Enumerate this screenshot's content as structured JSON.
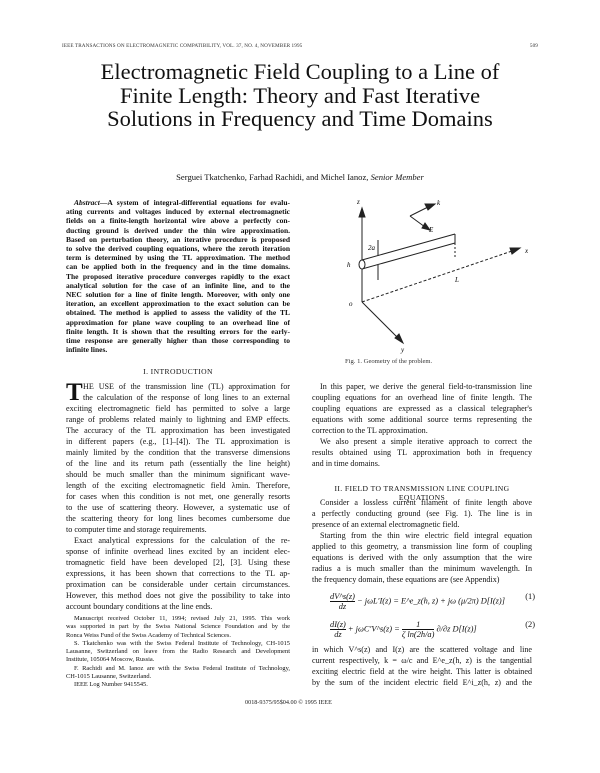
{
  "running_head": {
    "journal": "IEEE TRANSACTIONS ON ELECTROMAGNETIC COMPATIBILITY, VOL. 37, NO. 4, NOVEMBER 1995",
    "page": "509"
  },
  "title_lines": [
    "Electromagnetic Field Coupling to a Line of",
    "Finite Length: Theory and Fast Iterative",
    "Solutions in Frequency and Time Domains"
  ],
  "authors": "Serguei Tkatchenko, Farhad Rachidi, and Michel Ianoz,",
  "authors_role": "Senior Member",
  "abstract_label": "Abstract",
  "abstract_lines": [
    "—A system of integral-differential equations for evalu-",
    "ating currents and voltages induced by external electromagnetic",
    "fields on a finite-length horizontal wire above a perfectly con-",
    "ducting ground is derived under the thin wire approximation.",
    "Based on perturbation theory, an iterative procedure is proposed",
    "to solve the derived coupling equations, where the zeroth iteration",
    "term is determined by using the TL approximation. The method",
    "can be applied both in the frequency and in the time domains.",
    "The proposed iterative procedure converges rapidly to the exact",
    "analytical solution for the case of an infinite line, and to the",
    "NEC solution for a line of finite length. Moreover, with only one",
    "iteration, an excellent approximation to the exact solution can be",
    "obtained. The method is applied to assess the validity of the TL",
    "approximation for plane wave coupling to an overhead line of",
    "finite length. It is shown that the resulting errors for the early-",
    "time response are generally higher than those corresponding to",
    "infinite lines."
  ],
  "section1_heading": "I. INTRODUCTION",
  "intro_dropcap": "T",
  "intro_lines": [
    "HE USE of the transmission line (TL) approximation for",
    "the calculation of the response of long lines to an external",
    "exciting electromagnetic field has permitted to solve a large",
    "range of problems related mainly to lightning and EMP effects.",
    "The accuracy of the TL approximation has been investigated",
    "in different papers (e.g., [1]–[4]). The TL approximation is",
    "mainly limited by the condition that the transverse dimensions",
    "of the line and its return path (essentially the line height)",
    "should be much smaller than the minimum significant wave-",
    "length of the exciting electromagnetic field λmin. Therefore,",
    "for cases when this condition is not met, one generally resorts",
    "to the use of scattering theory. However, a systematic use of",
    "the scattering theory for long lines becomes cumbersome due",
    "to computer time and storage requirements.",
    "Exact analytical expressions for the calculation of the re-",
    "sponse of infinite overhead lines excited by an incident elec-",
    "tromagnetic field have been developed [2], [3]. Using these",
    "expressions, it has been shown that corrections to the TL ap-",
    "proximation can be considerable under certain circumstances.",
    "However, this method does not give the possibility to take into",
    "account boundary conditions at the line ends."
  ],
  "footnote_lines": [
    "Manuscript received October 11, 1994; revised July 21, 1995. This work",
    "was supported in part by the Swiss National Science Foundation and by the",
    "Ronca Weiss Fund of the Swiss Academy of Technical Sciences.",
    "S. Tkatchenko was with the Swiss Federal Institute of Technology, CH-1015",
    "Lausanne, Switzerland on leave from the Radio Research and Development",
    "Institute, 105064 Moscow, Russia.",
    "F. Rachidi and M. Ianoz are with the Swiss Federal Institute of Technology,",
    "CH-1015 Lausanne, Switzerland.",
    "IEEE Log Number 9415545."
  ],
  "copyright": "0018-9375/95$04.00 © 1995 IEEE",
  "figure": {
    "caption": "Fig. 1.   Geometry of the problem.",
    "labels": {
      "z": "z",
      "y": "y",
      "x": "x",
      "o": "o",
      "h": "h",
      "L": "L",
      "two_a": "2a",
      "e": "E",
      "k": "k"
    }
  },
  "right_para1_lines": [
    "In this paper, we derive the general field-to-transmission line",
    "coupling equations for an overhead line of finite length. The",
    "coupling equations are expressed as a classical telegrapher's",
    "equations with some additional source terms representing the",
    "correction to the TL approximation.",
    "We also present a simple iterative approach to correct the",
    "results obtained using TL approximation both in frequency",
    "and in time domains."
  ],
  "section2_heading": "II. FIELD TO TRANSMISSION LINE COUPLING EQUATIONS",
  "right_para2_lines": [
    "Consider a lossless current filament of finite length above",
    "a perfectly conducting ground (see Fig. 1). The line is in",
    "presence of an external electromagnetic field.",
    "Starting from the thin wire electric field integral equation",
    "applied to this geometry, a transmission line form of coupling",
    "equations is derived with the only assumption that the wire",
    "radius a is much smaller than the minimum wavelength. In",
    "the frequency domain, these equations are (see Appendix)"
  ],
  "equations": [
    {
      "num_top": "dV^s(z)",
      "den": "dz",
      "rest": "− jωL′I(z) = E^e_z(h, z) + jω (μ/2π) D[I(z)]",
      "label": "(1)"
    },
    {
      "num_top": "dI(z)",
      "den": "dz",
      "rest": "+ jωC′V^s(z) = ",
      "frac2_top": "1",
      "frac2_den": "ζ ln(2h/a)",
      "rest2": "∂/∂z D[I(z)]",
      "label": "(2)"
    }
  ],
  "right_para3_lines": [
    "in which V^s(z) and I(z) are the scattered voltage and line",
    "current respectively, k = ω/c and E^e_z(h, z) is the tangential",
    "exciting electric field at the wire height. This latter is obtained",
    "by the sum of the incident electric field E^i_z(h, z) and the"
  ]
}
